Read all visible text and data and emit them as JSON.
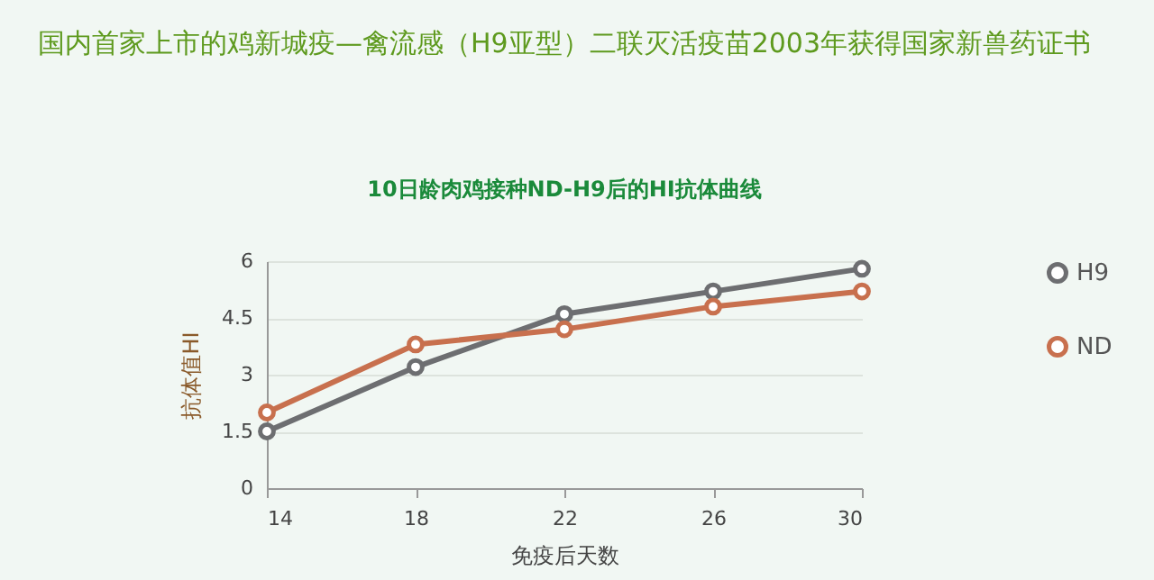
{
  "chart_data": {
    "type": "line",
    "title": "国内首家上市的鸡新城疫—禽流感（H9亚型）二联灭活疫苗2003年获得国家新兽药证书",
    "subtitle": "10日龄肉鸡接种ND-H9后的HI抗体曲线",
    "xlabel": "免疫后天数",
    "ylabel": "抗体值HI",
    "x": [
      14,
      18,
      22,
      26,
      30
    ],
    "series": [
      {
        "name": "H9",
        "color": "#6d6e71",
        "values": [
          1.5,
          3.2,
          4.6,
          5.2,
          5.8
        ]
      },
      {
        "name": "ND",
        "color": "#c8704e",
        "values": [
          2.0,
          3.8,
          4.2,
          4.8,
          5.2
        ]
      }
    ],
    "xlim": [
      14,
      30
    ],
    "xticks": [
      14,
      18,
      22,
      26,
      30
    ],
    "ylim": [
      0,
      6
    ],
    "yticks": [
      0,
      1.5,
      3,
      4.5,
      6
    ],
    "grid": "y",
    "legend": "right",
    "marker": "circle",
    "line_style": "solid"
  }
}
